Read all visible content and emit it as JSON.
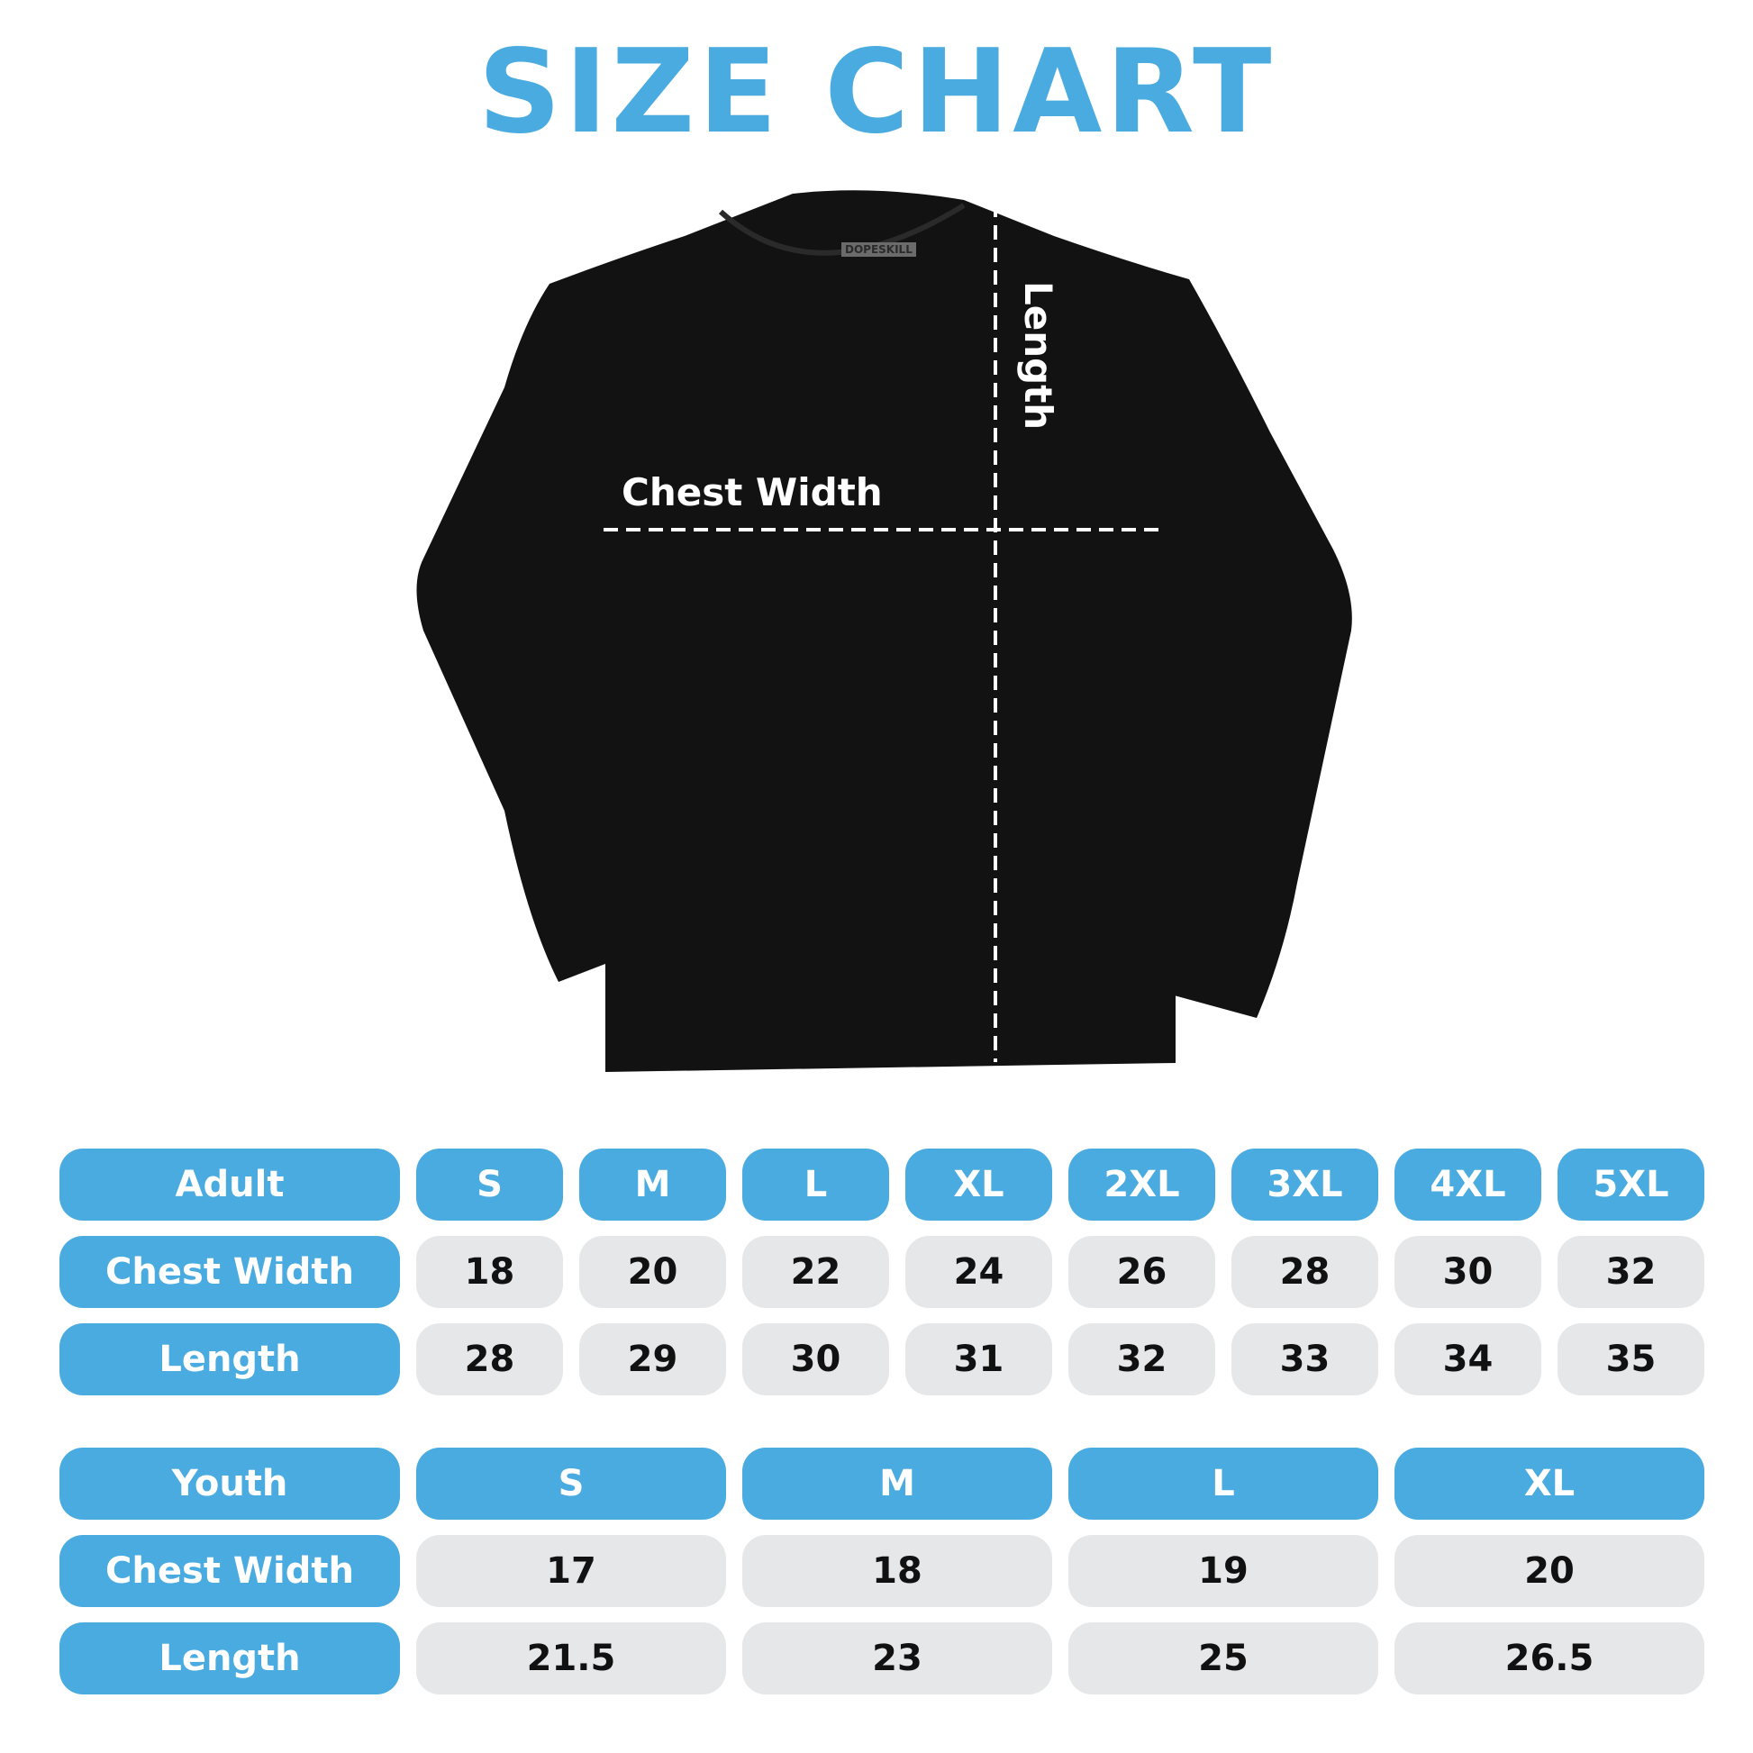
{
  "title": "SIZE CHART",
  "brand_label": "DOPESKILL",
  "diagram": {
    "chest_label": "Chest Width",
    "length_label": "Length"
  },
  "colors": {
    "accent": "#49abe0",
    "cell": "#e6e7e9",
    "shirt": "#111111"
  },
  "adult": {
    "header": "Adult",
    "sizes": [
      "S",
      "M",
      "L",
      "XL",
      "2XL",
      "3XL",
      "4XL",
      "5XL"
    ],
    "rows": [
      {
        "label": "Chest Width",
        "values": [
          "18",
          "20",
          "22",
          "24",
          "26",
          "28",
          "30",
          "32"
        ]
      },
      {
        "label": "Length",
        "values": [
          "28",
          "29",
          "30",
          "31",
          "32",
          "33",
          "34",
          "35"
        ]
      }
    ]
  },
  "youth": {
    "header": "Youth",
    "sizes": [
      "S",
      "M",
      "L",
      "XL"
    ],
    "rows": [
      {
        "label": "Chest Width",
        "values": [
          "17",
          "18",
          "19",
          "20"
        ]
      },
      {
        "label": "Length",
        "values": [
          "21.5",
          "23",
          "25",
          "26.5"
        ]
      }
    ]
  }
}
